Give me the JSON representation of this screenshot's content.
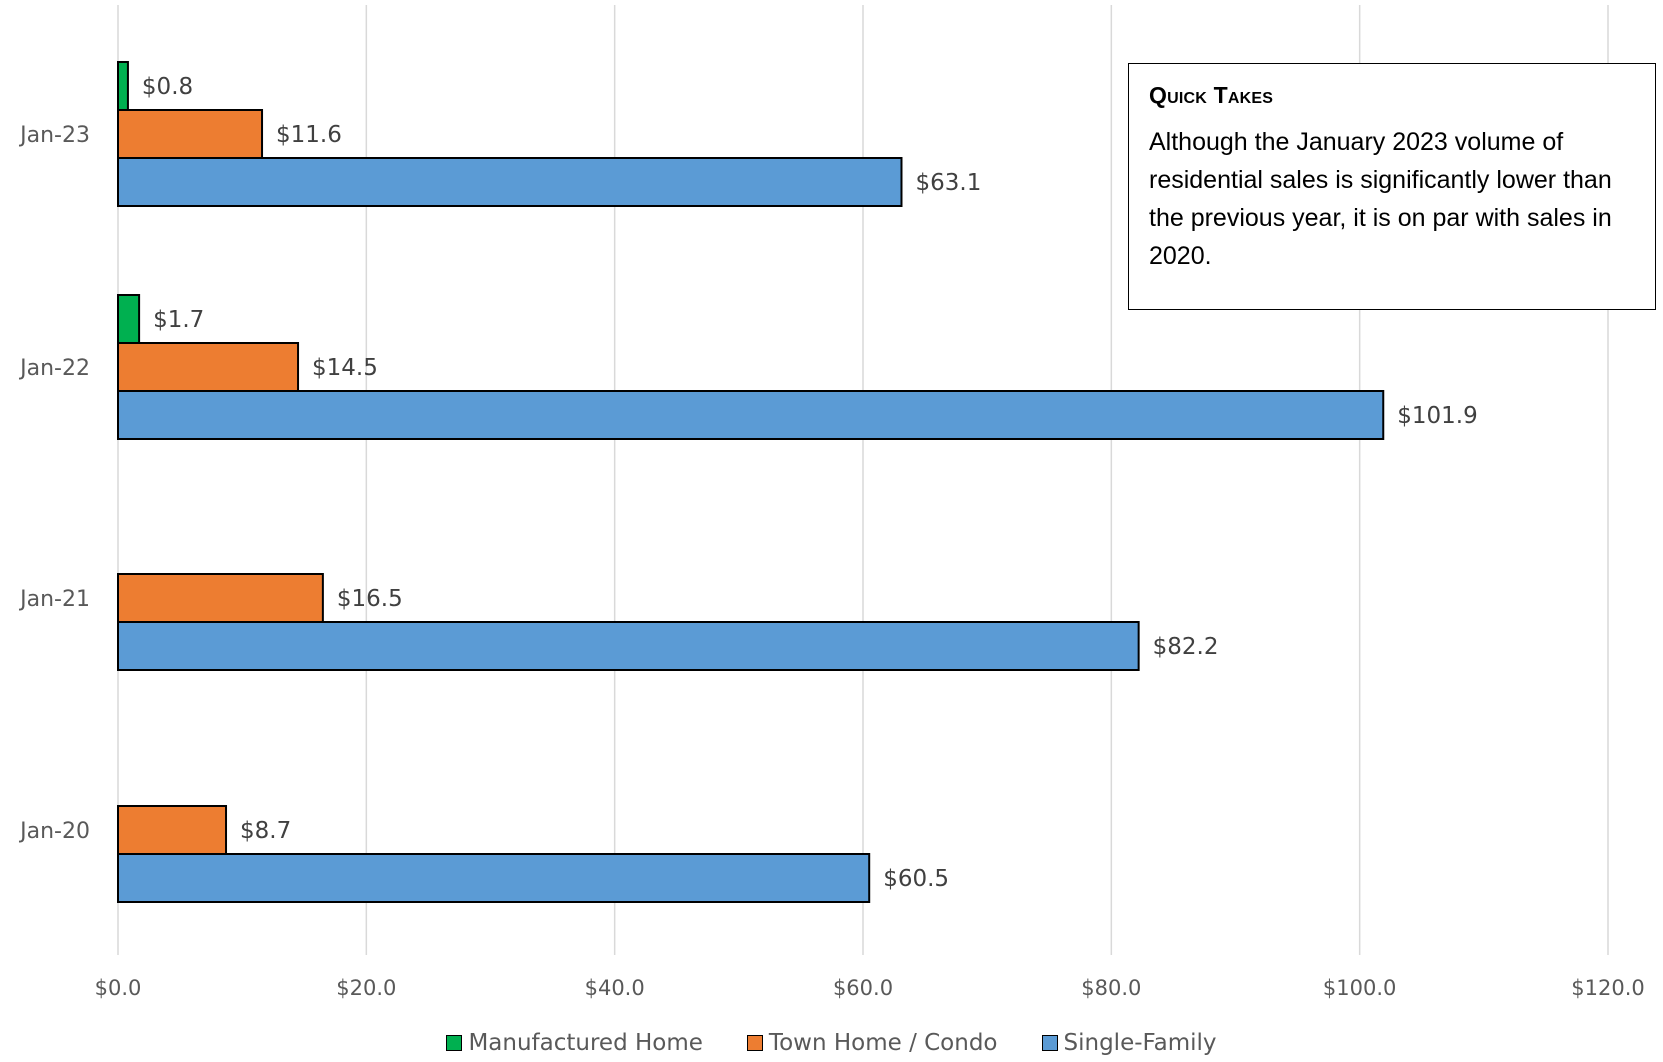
{
  "chart_data": {
    "type": "bar",
    "orientation": "horizontal",
    "categories": [
      "Jan-23",
      "Jan-22",
      "Jan-21",
      "Jan-20"
    ],
    "series": [
      {
        "name": "Manufactured Home",
        "color": "#00b050",
        "values": [
          0.8,
          1.7,
          null,
          null
        ],
        "labels": [
          "$0.8",
          "$1.7",
          "",
          ""
        ]
      },
      {
        "name": "Town Home / Condo",
        "color": "#ed7d31",
        "values": [
          11.6,
          14.5,
          16.5,
          8.7
        ],
        "labels": [
          "$11.6",
          "$14.5",
          "$16.5",
          "$8.7"
        ]
      },
      {
        "name": "Single-Family",
        "color": "#5b9bd5",
        "values": [
          63.1,
          101.9,
          82.2,
          60.5
        ],
        "labels": [
          "$63.1",
          "$101.9",
          "$82.2",
          "$60.5"
        ]
      }
    ],
    "xlim": [
      0,
      120
    ],
    "x_ticks": [
      0,
      20,
      40,
      60,
      80,
      100,
      120
    ],
    "x_tick_labels": [
      "$0.0",
      "$20.0",
      "$40.0",
      "$60.0",
      "$80.0",
      "$100.0",
      "$120.0"
    ],
    "grid": "vertical",
    "legend_position": "bottom"
  },
  "quick_takes": {
    "title": "Quick Takes",
    "body": "Although the January 2023 volume of residential sales is significantly lower than the previous year, it is on par with sales in 2020."
  }
}
